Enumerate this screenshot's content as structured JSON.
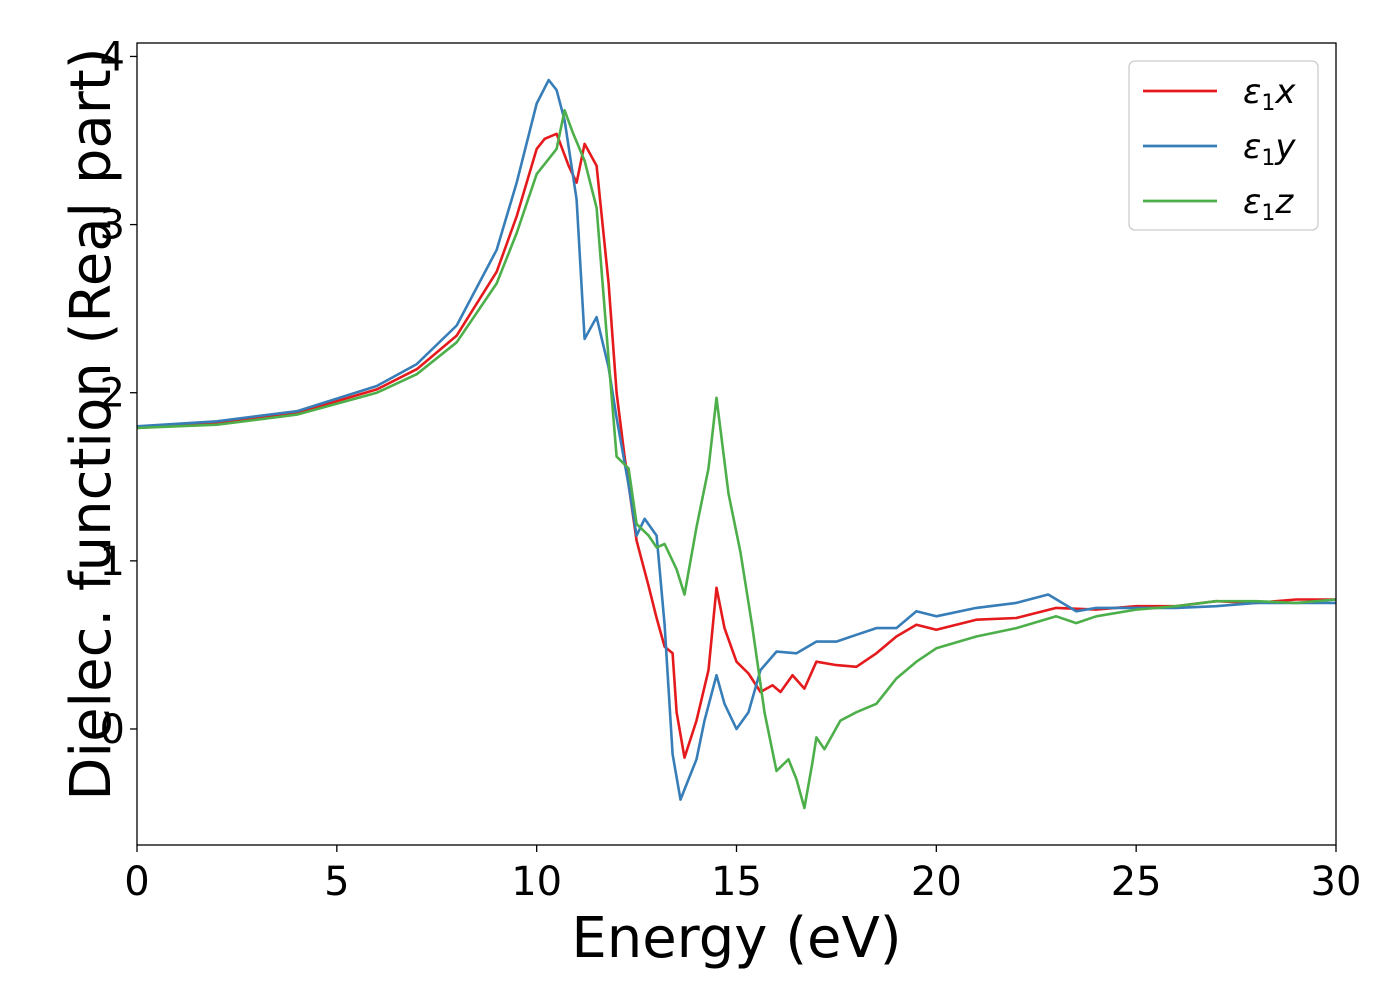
{
  "chart_data": {
    "type": "line",
    "xlabel": "Energy (eV)",
    "ylabel": "Dielec. function (Real part)",
    "xlim": [
      0,
      30
    ],
    "ylim": [
      -0.69,
      4.08
    ],
    "xticks": [
      0,
      5,
      10,
      15,
      20,
      25,
      30
    ],
    "yticks": [
      0,
      1,
      2,
      3,
      4
    ],
    "grid": false,
    "legend_position": "top-right",
    "series": [
      {
        "name": "ε1x",
        "legend": {
          "base": "ε",
          "sub": "1",
          "var": "x"
        },
        "color": "#e41a1c",
        "points": [
          [
            0,
            1.79
          ],
          [
            2,
            1.82
          ],
          [
            4,
            1.88
          ],
          [
            6,
            2.02
          ],
          [
            7,
            2.14
          ],
          [
            8,
            2.34
          ],
          [
            9,
            2.72
          ],
          [
            9.5,
            3.05
          ],
          [
            10,
            3.45
          ],
          [
            10.2,
            3.51
          ],
          [
            10.5,
            3.54
          ],
          [
            10.8,
            3.35
          ],
          [
            11,
            3.25
          ],
          [
            11.2,
            3.48
          ],
          [
            11.5,
            3.35
          ],
          [
            11.8,
            2.65
          ],
          [
            12,
            2.0
          ],
          [
            12.2,
            1.62
          ],
          [
            12.5,
            1.12
          ],
          [
            12.8,
            0.85
          ],
          [
            13,
            0.66
          ],
          [
            13.2,
            0.49
          ],
          [
            13.4,
            0.45
          ],
          [
            13.5,
            0.1
          ],
          [
            13.7,
            -0.17
          ],
          [
            14,
            0.05
          ],
          [
            14.3,
            0.35
          ],
          [
            14.5,
            0.84
          ],
          [
            14.7,
            0.6
          ],
          [
            15,
            0.4
          ],
          [
            15.3,
            0.33
          ],
          [
            15.6,
            0.22
          ],
          [
            15.9,
            0.26
          ],
          [
            16.1,
            0.22
          ],
          [
            16.4,
            0.32
          ],
          [
            16.7,
            0.24
          ],
          [
            17,
            0.4
          ],
          [
            17.5,
            0.38
          ],
          [
            18,
            0.37
          ],
          [
            18.5,
            0.45
          ],
          [
            19,
            0.55
          ],
          [
            19.5,
            0.62
          ],
          [
            20,
            0.59
          ],
          [
            21,
            0.65
          ],
          [
            22,
            0.66
          ],
          [
            23,
            0.72
          ],
          [
            24,
            0.71
          ],
          [
            25,
            0.73
          ],
          [
            26,
            0.73
          ],
          [
            27,
            0.76
          ],
          [
            28,
            0.75
          ],
          [
            29,
            0.77
          ],
          [
            30,
            0.77
          ]
        ]
      },
      {
        "name": "ε1y",
        "legend": {
          "base": "ε",
          "sub": "1",
          "var": "y"
        },
        "color": "#377eb8",
        "points": [
          [
            0,
            1.8
          ],
          [
            2,
            1.83
          ],
          [
            4,
            1.89
          ],
          [
            6,
            2.04
          ],
          [
            7,
            2.17
          ],
          [
            8,
            2.4
          ],
          [
            9,
            2.85
          ],
          [
            9.5,
            3.25
          ],
          [
            10,
            3.72
          ],
          [
            10.3,
            3.86
          ],
          [
            10.5,
            3.8
          ],
          [
            10.7,
            3.62
          ],
          [
            11,
            3.15
          ],
          [
            11.2,
            2.32
          ],
          [
            11.5,
            2.45
          ],
          [
            11.8,
            2.15
          ],
          [
            12,
            1.85
          ],
          [
            12.3,
            1.45
          ],
          [
            12.5,
            1.15
          ],
          [
            12.7,
            1.25
          ],
          [
            13,
            1.15
          ],
          [
            13.2,
            0.62
          ],
          [
            13.4,
            -0.15
          ],
          [
            13.6,
            -0.42
          ],
          [
            13.8,
            -0.3
          ],
          [
            14,
            -0.18
          ],
          [
            14.2,
            0.05
          ],
          [
            14.5,
            0.32
          ],
          [
            14.7,
            0.15
          ],
          [
            15,
            0.0
          ],
          [
            15.3,
            0.1
          ],
          [
            15.6,
            0.35
          ],
          [
            16,
            0.46
          ],
          [
            16.5,
            0.45
          ],
          [
            17,
            0.52
          ],
          [
            17.5,
            0.52
          ],
          [
            18,
            0.56
          ],
          [
            18.5,
            0.6
          ],
          [
            19,
            0.6
          ],
          [
            19.5,
            0.7
          ],
          [
            20,
            0.67
          ],
          [
            21,
            0.72
          ],
          [
            22,
            0.75
          ],
          [
            22.8,
            0.8
          ],
          [
            23.5,
            0.7
          ],
          [
            24,
            0.72
          ],
          [
            25,
            0.72
          ],
          [
            26,
            0.72
          ],
          [
            27,
            0.73
          ],
          [
            28,
            0.75
          ],
          [
            29,
            0.75
          ],
          [
            30,
            0.75
          ]
        ]
      },
      {
        "name": "ε1z",
        "legend": {
          "base": "ε",
          "sub": "1",
          "var": "z"
        },
        "color": "#4daf4a",
        "points": [
          [
            0,
            1.79
          ],
          [
            2,
            1.81
          ],
          [
            4,
            1.87
          ],
          [
            6,
            2.0
          ],
          [
            7,
            2.11
          ],
          [
            8,
            2.3
          ],
          [
            9,
            2.65
          ],
          [
            9.5,
            2.95
          ],
          [
            10,
            3.3
          ],
          [
            10.5,
            3.45
          ],
          [
            10.7,
            3.68
          ],
          [
            10.9,
            3.55
          ],
          [
            11.2,
            3.38
          ],
          [
            11.5,
            3.1
          ],
          [
            11.8,
            2.2
          ],
          [
            12,
            1.62
          ],
          [
            12.3,
            1.55
          ],
          [
            12.5,
            1.22
          ],
          [
            12.8,
            1.15
          ],
          [
            13,
            1.08
          ],
          [
            13.2,
            1.1
          ],
          [
            13.5,
            0.95
          ],
          [
            13.7,
            0.8
          ],
          [
            14,
            1.2
          ],
          [
            14.3,
            1.55
          ],
          [
            14.5,
            1.97
          ],
          [
            14.8,
            1.4
          ],
          [
            15.1,
            1.05
          ],
          [
            15.4,
            0.6
          ],
          [
            15.7,
            0.1
          ],
          [
            16,
            -0.25
          ],
          [
            16.3,
            -0.18
          ],
          [
            16.5,
            -0.3
          ],
          [
            16.7,
            -0.47
          ],
          [
            16.9,
            -0.2
          ],
          [
            17,
            -0.05
          ],
          [
            17.2,
            -0.12
          ],
          [
            17.6,
            0.05
          ],
          [
            18,
            0.1
          ],
          [
            18.5,
            0.15
          ],
          [
            19,
            0.3
          ],
          [
            19.5,
            0.4
          ],
          [
            20,
            0.48
          ],
          [
            21,
            0.55
          ],
          [
            22,
            0.6
          ],
          [
            23,
            0.67
          ],
          [
            23.5,
            0.63
          ],
          [
            24,
            0.67
          ],
          [
            25,
            0.71
          ],
          [
            26,
            0.73
          ],
          [
            27,
            0.76
          ],
          [
            28,
            0.76
          ],
          [
            29,
            0.75
          ],
          [
            30,
            0.77
          ]
        ]
      }
    ]
  }
}
